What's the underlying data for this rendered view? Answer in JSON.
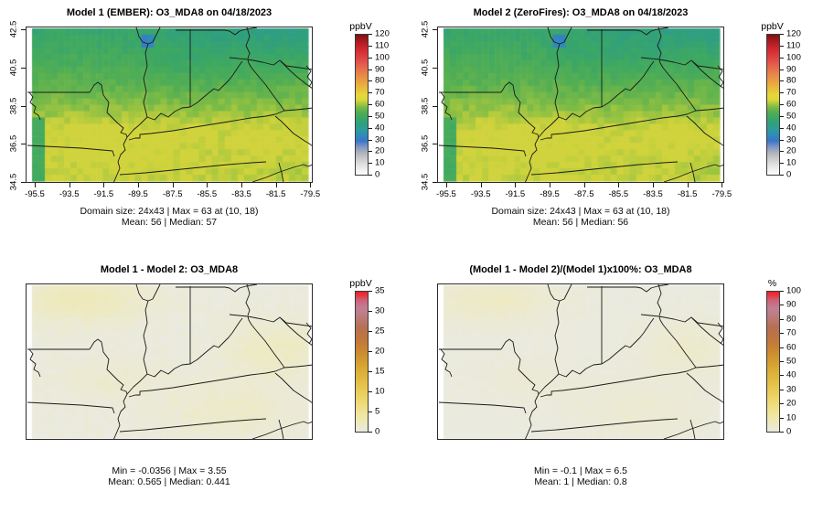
{
  "figure": {
    "description": "Four-panel spatial model comparison plot of O3_MDA8 ozone",
    "background": "#ffffff",
    "border_line_color": "#1a1a1a"
  },
  "scales": {
    "conc": {
      "label": "ppbV",
      "min": 0,
      "max": 120,
      "ticks": [
        0,
        10,
        20,
        30,
        40,
        50,
        60,
        70,
        80,
        90,
        100,
        110,
        120
      ],
      "stops": [
        {
          "v": 0,
          "c": "#ffffff"
        },
        {
          "v": 8,
          "c": "#e3e3e3"
        },
        {
          "v": 14,
          "c": "#c9c9c9"
        },
        {
          "v": 19,
          "c": "#adb1ba"
        },
        {
          "v": 24,
          "c": "#7e95c4"
        },
        {
          "v": 29,
          "c": "#3a74c8"
        },
        {
          "v": 34,
          "c": "#2f8cba"
        },
        {
          "v": 39,
          "c": "#2d9d98"
        },
        {
          "v": 44,
          "c": "#309f7f"
        },
        {
          "v": 49,
          "c": "#3da863"
        },
        {
          "v": 54,
          "c": "#55af52"
        },
        {
          "v": 58,
          "c": "#7cbb47"
        },
        {
          "v": 61,
          "c": "#aac83e"
        },
        {
          "v": 64,
          "c": "#d9d63a"
        },
        {
          "v": 68,
          "c": "#e6d83a"
        },
        {
          "v": 74,
          "c": "#e7bd3b"
        },
        {
          "v": 80,
          "c": "#e9a041"
        },
        {
          "v": 87,
          "c": "#e8814b"
        },
        {
          "v": 94,
          "c": "#e35f4d"
        },
        {
          "v": 101,
          "c": "#dd3f41"
        },
        {
          "v": 108,
          "c": "#d02730"
        },
        {
          "v": 114,
          "c": "#ad1a20"
        },
        {
          "v": 120,
          "c": "#7d1214"
        }
      ]
    },
    "diff": {
      "label": "ppbV",
      "min": 0,
      "max": 35,
      "ticks": [
        0,
        5,
        10,
        15,
        20,
        25,
        30,
        35
      ],
      "stops": [
        {
          "v": 0,
          "c": "#eaeae1"
        },
        {
          "v": 1.5,
          "c": "#edeac6"
        },
        {
          "v": 4,
          "c": "#f0e7a4"
        },
        {
          "v": 8,
          "c": "#eed76b"
        },
        {
          "v": 12,
          "c": "#e4c048"
        },
        {
          "v": 16,
          "c": "#d9a833"
        },
        {
          "v": 20,
          "c": "#cb8a2e"
        },
        {
          "v": 23,
          "c": "#c0763c"
        },
        {
          "v": 26,
          "c": "#b76f52"
        },
        {
          "v": 29,
          "c": "#bb7d7f"
        },
        {
          "v": 31,
          "c": "#c27e95"
        },
        {
          "v": 33,
          "c": "#cf5f74"
        },
        {
          "v": 34,
          "c": "#e23a45"
        },
        {
          "v": 35,
          "c": "#f31d24"
        }
      ]
    },
    "pct": {
      "label": "%",
      "min": 0,
      "max": 100,
      "ticks": [
        0,
        10,
        20,
        30,
        40,
        50,
        60,
        70,
        80,
        90,
        100
      ],
      "stops": [
        {
          "v": 0,
          "c": "#eaeae1"
        },
        {
          "v": 4.3,
          "c": "#edeac6"
        },
        {
          "v": 11.4,
          "c": "#f0e7a4"
        },
        {
          "v": 22.9,
          "c": "#eed76b"
        },
        {
          "v": 34.3,
          "c": "#e4c048"
        },
        {
          "v": 45.7,
          "c": "#d9a833"
        },
        {
          "v": 57.1,
          "c": "#cb8a2e"
        },
        {
          "v": 65.7,
          "c": "#c0763c"
        },
        {
          "v": 74.3,
          "c": "#b76f52"
        },
        {
          "v": 82.9,
          "c": "#bb7d7f"
        },
        {
          "v": 88.6,
          "c": "#c27e95"
        },
        {
          "v": 94.3,
          "c": "#cf5f74"
        },
        {
          "v": 97.1,
          "c": "#e23a45"
        },
        {
          "v": 100,
          "c": "#f31d24"
        }
      ]
    }
  },
  "axes": {
    "x_ticks": [
      "-95.5",
      "-93.5",
      "-91.5",
      "-89.5",
      "-87.5",
      "-85.5",
      "-83.5",
      "-81.5",
      "-79.5"
    ],
    "y_ticks": [
      "42.5",
      "40.5",
      "38.5",
      "36.5",
      "34.5"
    ]
  },
  "panels": [
    {
      "key": "model1",
      "title": "Model 1 (EMBER): O3_MDA8 on 04/18/2023",
      "scale": "conc",
      "field": "conc1",
      "has_axes": true,
      "stats": [
        "Domain size: 24x43 | Max = 63 at (10, 18)",
        "Mean: 56 |  Median: 57"
      ]
    },
    {
      "key": "model2",
      "title": "Model 2 (ZeroFires): O3_MDA8 on 04/18/2023",
      "scale": "conc",
      "field": "conc2",
      "has_axes": true,
      "stats": [
        "Domain size: 24x43 | Max = 63 at (10, 18)",
        "Mean: 56 |  Median: 56"
      ]
    },
    {
      "key": "diff",
      "title": "Model 1 - Model 2: O3_MDA8",
      "scale": "diff",
      "field": "diff",
      "has_axes": false,
      "stats": [
        "Min = -0.0356 | Max = 3.55",
        "Mean: 0.565 |  Median: 0.441"
      ]
    },
    {
      "key": "pctdiff",
      "title": "(Model 1 - Model 2)/(Model 1)x100%: O3_MDA8",
      "scale": "pct",
      "field": "pct",
      "has_axes": false,
      "stats": [
        "Min = -0.1 | Max = 6.5",
        "Mean: 1 |  Median: 0.8"
      ]
    }
  ],
  "grid": {
    "rows": 24,
    "cols": 43
  },
  "chart_data": [
    {
      "type": "heatmap",
      "title": "Model 1 (EMBER): O3_MDA8 on 04/18/2023",
      "units": "ppbV",
      "x_tick_labels": [
        -95.5,
        -93.5,
        -91.5,
        -89.5,
        -87.5,
        -85.5,
        -83.5,
        -81.5,
        -79.5
      ],
      "y_tick_labels": [
        34.5,
        36.5,
        38.5,
        40.5,
        42.5
      ],
      "domain_size": "24x43",
      "max": 63,
      "max_at": "(10, 18)",
      "mean": 56,
      "median": 57,
      "colorbar": {
        "label": "ppbV",
        "range": [
          0,
          120
        ],
        "tick_step": 10
      },
      "value_pattern": "teal-green ~44-50 in north, green ~52-57 mid, yellow ~58-63 south; small blue ~31-34 pocket at Lake Michigan tip",
      "legend_position": "right",
      "grid_lines": false
    },
    {
      "type": "heatmap",
      "title": "Model 2 (ZeroFires): O3_MDA8 on 04/18/2023",
      "units": "ppbV",
      "x_tick_labels": [
        -95.5,
        -93.5,
        -91.5,
        -89.5,
        -87.5,
        -85.5,
        -83.5,
        -81.5,
        -79.5
      ],
      "y_tick_labels": [
        34.5,
        36.5,
        38.5,
        40.5,
        42.5
      ],
      "domain_size": "24x43",
      "max": 63,
      "max_at": "(10, 18)",
      "mean": 56,
      "median": 56,
      "colorbar": {
        "label": "ppbV",
        "range": [
          0,
          120
        ],
        "tick_step": 10
      },
      "value_pattern": "nearly identical to Model 1",
      "legend_position": "right",
      "grid_lines": false
    },
    {
      "type": "heatmap",
      "title": "Model 1 - Model 2: O3_MDA8",
      "units": "ppbV",
      "min": -0.0356,
      "max": 3.55,
      "mean": 0.565,
      "median": 0.441,
      "colorbar": {
        "label": "ppbV",
        "range": [
          0,
          35
        ],
        "tick_step": 5
      },
      "value_pattern": "mostly ~0 (light gray) with faint pale-yellow patches ~1-3 in NW corner, east-center and southeast",
      "legend_position": "right",
      "grid_lines": false
    },
    {
      "type": "heatmap",
      "title": "(Model 1 - Model 2)/(Model 1)x100%: O3_MDA8",
      "units": "%",
      "min": -0.1,
      "max": 6.5,
      "mean": 1,
      "median": 0.8,
      "colorbar": {
        "label": "%",
        "range": [
          0,
          100
        ],
        "tick_step": 10
      },
      "value_pattern": "mostly ~0 (light gray) with faint pale-yellow patches up to ~5% mirroring difference map",
      "legend_position": "right",
      "grid_lines": false
    }
  ]
}
